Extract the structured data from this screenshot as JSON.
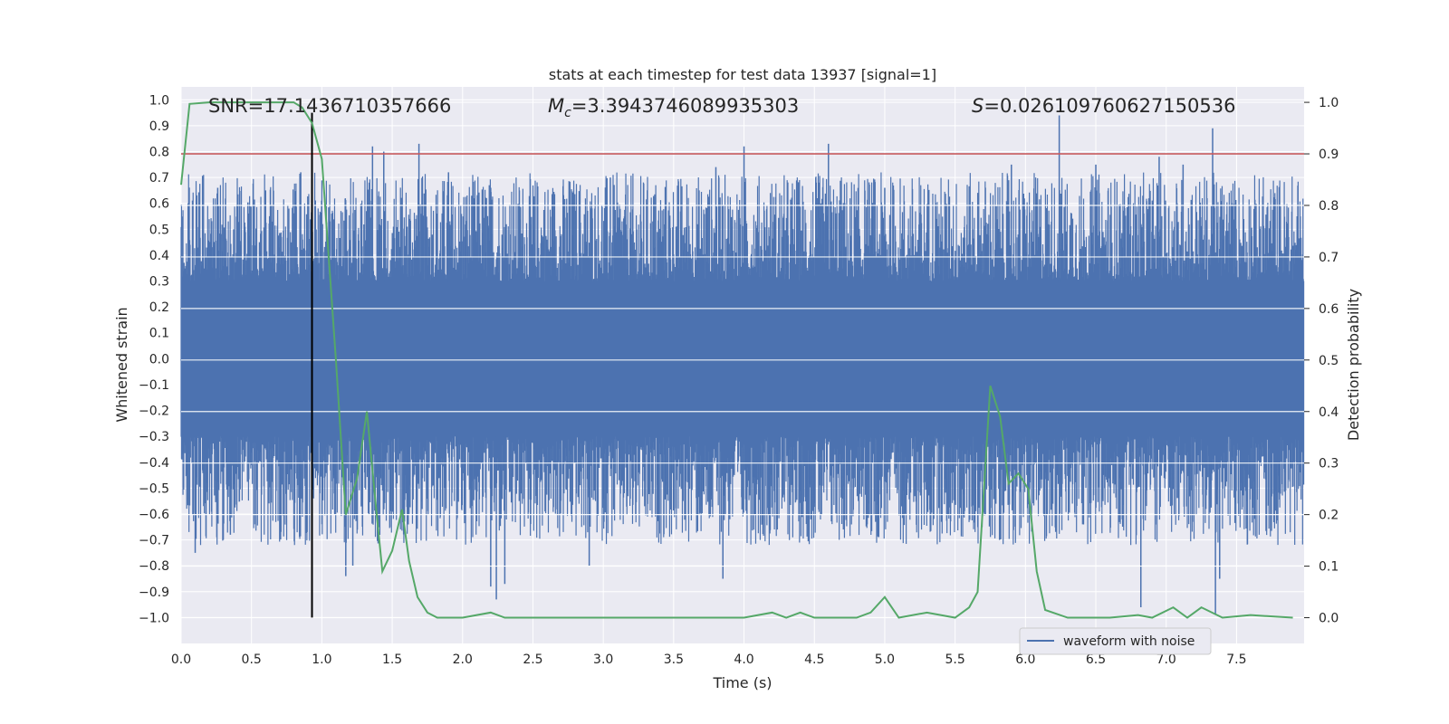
{
  "chart_data": {
    "type": "line",
    "title": "stats at each timestep for test data 13937 [signal=1]",
    "xlabel": "Time (s)",
    "ylabel": "Whitened strain",
    "ylabel_right": "Detection probability",
    "xlim": [
      0.0,
      7.98
    ],
    "ylim": [
      -1.1,
      1.05
    ],
    "ylim_right": [
      -0.05,
      1.03
    ],
    "x_ticks": [
      0.0,
      0.5,
      1.0,
      1.5,
      2.0,
      2.5,
      3.0,
      3.5,
      4.0,
      4.5,
      5.0,
      5.5,
      6.0,
      6.5,
      7.0,
      7.5
    ],
    "x_tick_labels": [
      "0.0",
      "0.5",
      "1.0",
      "1.5",
      "2.0",
      "2.5",
      "3.0",
      "3.5",
      "4.0",
      "4.5",
      "5.0",
      "5.5",
      "6.0",
      "6.5",
      "7.0",
      "7.5"
    ],
    "y_ticks": [
      1.0,
      0.9,
      0.8,
      0.7,
      0.6,
      0.5,
      0.4,
      0.3,
      0.2,
      0.1,
      0.0,
      -0.1,
      -0.2,
      -0.3,
      -0.4,
      -0.5,
      -0.6,
      -0.7,
      -0.8,
      -0.9,
      -1.0
    ],
    "y_tick_labels": [
      "1.0",
      "0.9",
      "0.8",
      "0.7",
      "0.6",
      "0.5",
      "0.4",
      "0.3",
      "0.2",
      "0.1",
      "0.0",
      "−0.1",
      "−0.2",
      "−0.3",
      "−0.4",
      "−0.5",
      "−0.6",
      "−0.7",
      "−0.8",
      "−0.9",
      "−1.0"
    ],
    "y_right_ticks": [
      1.0,
      0.9,
      0.8,
      0.7,
      0.6,
      0.5,
      0.4,
      0.3,
      0.2,
      0.1,
      0.0
    ],
    "y_right_tick_labels": [
      "1.0",
      "0.9",
      "0.8",
      "0.7",
      "0.6",
      "0.5",
      "0.4",
      "0.3",
      "0.2",
      "0.1",
      "0.0"
    ],
    "grid": true,
    "legend": {
      "position": "bottom-right",
      "entries": [
        "waveform with noise"
      ]
    },
    "annotations": {
      "snr": "SNR=17.1436710357666",
      "mc_symbol": "M",
      "mc_sub": "c",
      "mc_value": "=3.3943746089935303",
      "s_symbol": "S",
      "s_value": "=0.026109760627150536"
    },
    "waveform": {
      "name": "waveform with noise",
      "color": "#4c72b0",
      "band_low": -0.3,
      "band_high": 0.3,
      "spike_peaks": [
        {
          "x": 0.05,
          "y": 0.6
        },
        {
          "x": 0.26,
          "y": 0.66
        },
        {
          "x": 0.6,
          "y": 0.65
        },
        {
          "x": 0.85,
          "y": 0.72
        },
        {
          "x": 1.36,
          "y": 0.82
        },
        {
          "x": 1.44,
          "y": 0.8
        },
        {
          "x": 1.69,
          "y": 0.83
        },
        {
          "x": 1.9,
          "y": 0.72
        },
        {
          "x": 2.2,
          "y": 0.66
        },
        {
          "x": 3.05,
          "y": 0.7
        },
        {
          "x": 3.8,
          "y": 0.74
        },
        {
          "x": 4.0,
          "y": 0.82
        },
        {
          "x": 4.6,
          "y": 0.83
        },
        {
          "x": 5.0,
          "y": 0.66
        },
        {
          "x": 5.9,
          "y": 0.75
        },
        {
          "x": 6.24,
          "y": 0.94
        },
        {
          "x": 6.5,
          "y": 0.75
        },
        {
          "x": 6.95,
          "y": 0.78
        },
        {
          "x": 7.12,
          "y": 0.75
        },
        {
          "x": 7.33,
          "y": 0.89
        },
        {
          "x": 0.1,
          "y": -0.75
        },
        {
          "x": 0.35,
          "y": -0.68
        },
        {
          "x": 1.17,
          "y": -0.84
        },
        {
          "x": 1.22,
          "y": -0.8
        },
        {
          "x": 2.2,
          "y": -0.88
        },
        {
          "x": 2.24,
          "y": -0.93
        },
        {
          "x": 2.3,
          "y": -0.87
        },
        {
          "x": 2.9,
          "y": -0.8
        },
        {
          "x": 3.85,
          "y": -0.85
        },
        {
          "x": 6.82,
          "y": -0.96
        },
        {
          "x": 7.35,
          "y": -0.99
        },
        {
          "x": 7.38,
          "y": -0.85
        }
      ]
    },
    "detection_probability": {
      "color": "#55a868",
      "x": [
        0.0,
        0.06,
        0.2,
        0.4,
        0.6,
        0.8,
        0.86,
        0.93,
        1.0,
        1.1,
        1.17,
        1.25,
        1.32,
        1.39,
        1.43,
        1.5,
        1.57,
        1.62,
        1.68,
        1.75,
        1.82,
        2.0,
        2.2,
        2.3,
        2.5,
        3.0,
        3.5,
        4.0,
        4.2,
        4.3,
        4.4,
        4.5,
        4.8,
        4.9,
        5.0,
        5.1,
        5.3,
        5.5,
        5.6,
        5.66,
        5.75,
        5.82,
        5.88,
        5.95,
        6.02,
        6.08,
        6.14,
        6.3,
        6.6,
        6.8,
        6.9,
        7.05,
        7.15,
        7.25,
        7.4,
        7.6,
        7.9
      ],
      "y": [
        0.84,
        0.997,
        1.0,
        1.0,
        1.0,
        1.0,
        0.99,
        0.96,
        0.89,
        0.5,
        0.2,
        0.27,
        0.4,
        0.2,
        0.09,
        0.13,
        0.21,
        0.11,
        0.04,
        0.01,
        0.0,
        0.0,
        0.01,
        0.0,
        0.0,
        0.0,
        0.0,
        0.0,
        0.01,
        0.0,
        0.01,
        0.0,
        0.0,
        0.01,
        0.04,
        0.0,
        0.01,
        0.0,
        0.02,
        0.05,
        0.45,
        0.39,
        0.26,
        0.28,
        0.25,
        0.09,
        0.015,
        0.0,
        0.0,
        0.005,
        0.0,
        0.02,
        0.0,
        0.02,
        0.0,
        0.005,
        0.0
      ]
    },
    "hlines": [
      {
        "axis": "right",
        "y": 0.9,
        "color": "#c44e52"
      }
    ],
    "vlines": [
      {
        "x": 0.93,
        "ymin": -1.0,
        "ymax": 0.95,
        "color": "#000000"
      }
    ]
  }
}
